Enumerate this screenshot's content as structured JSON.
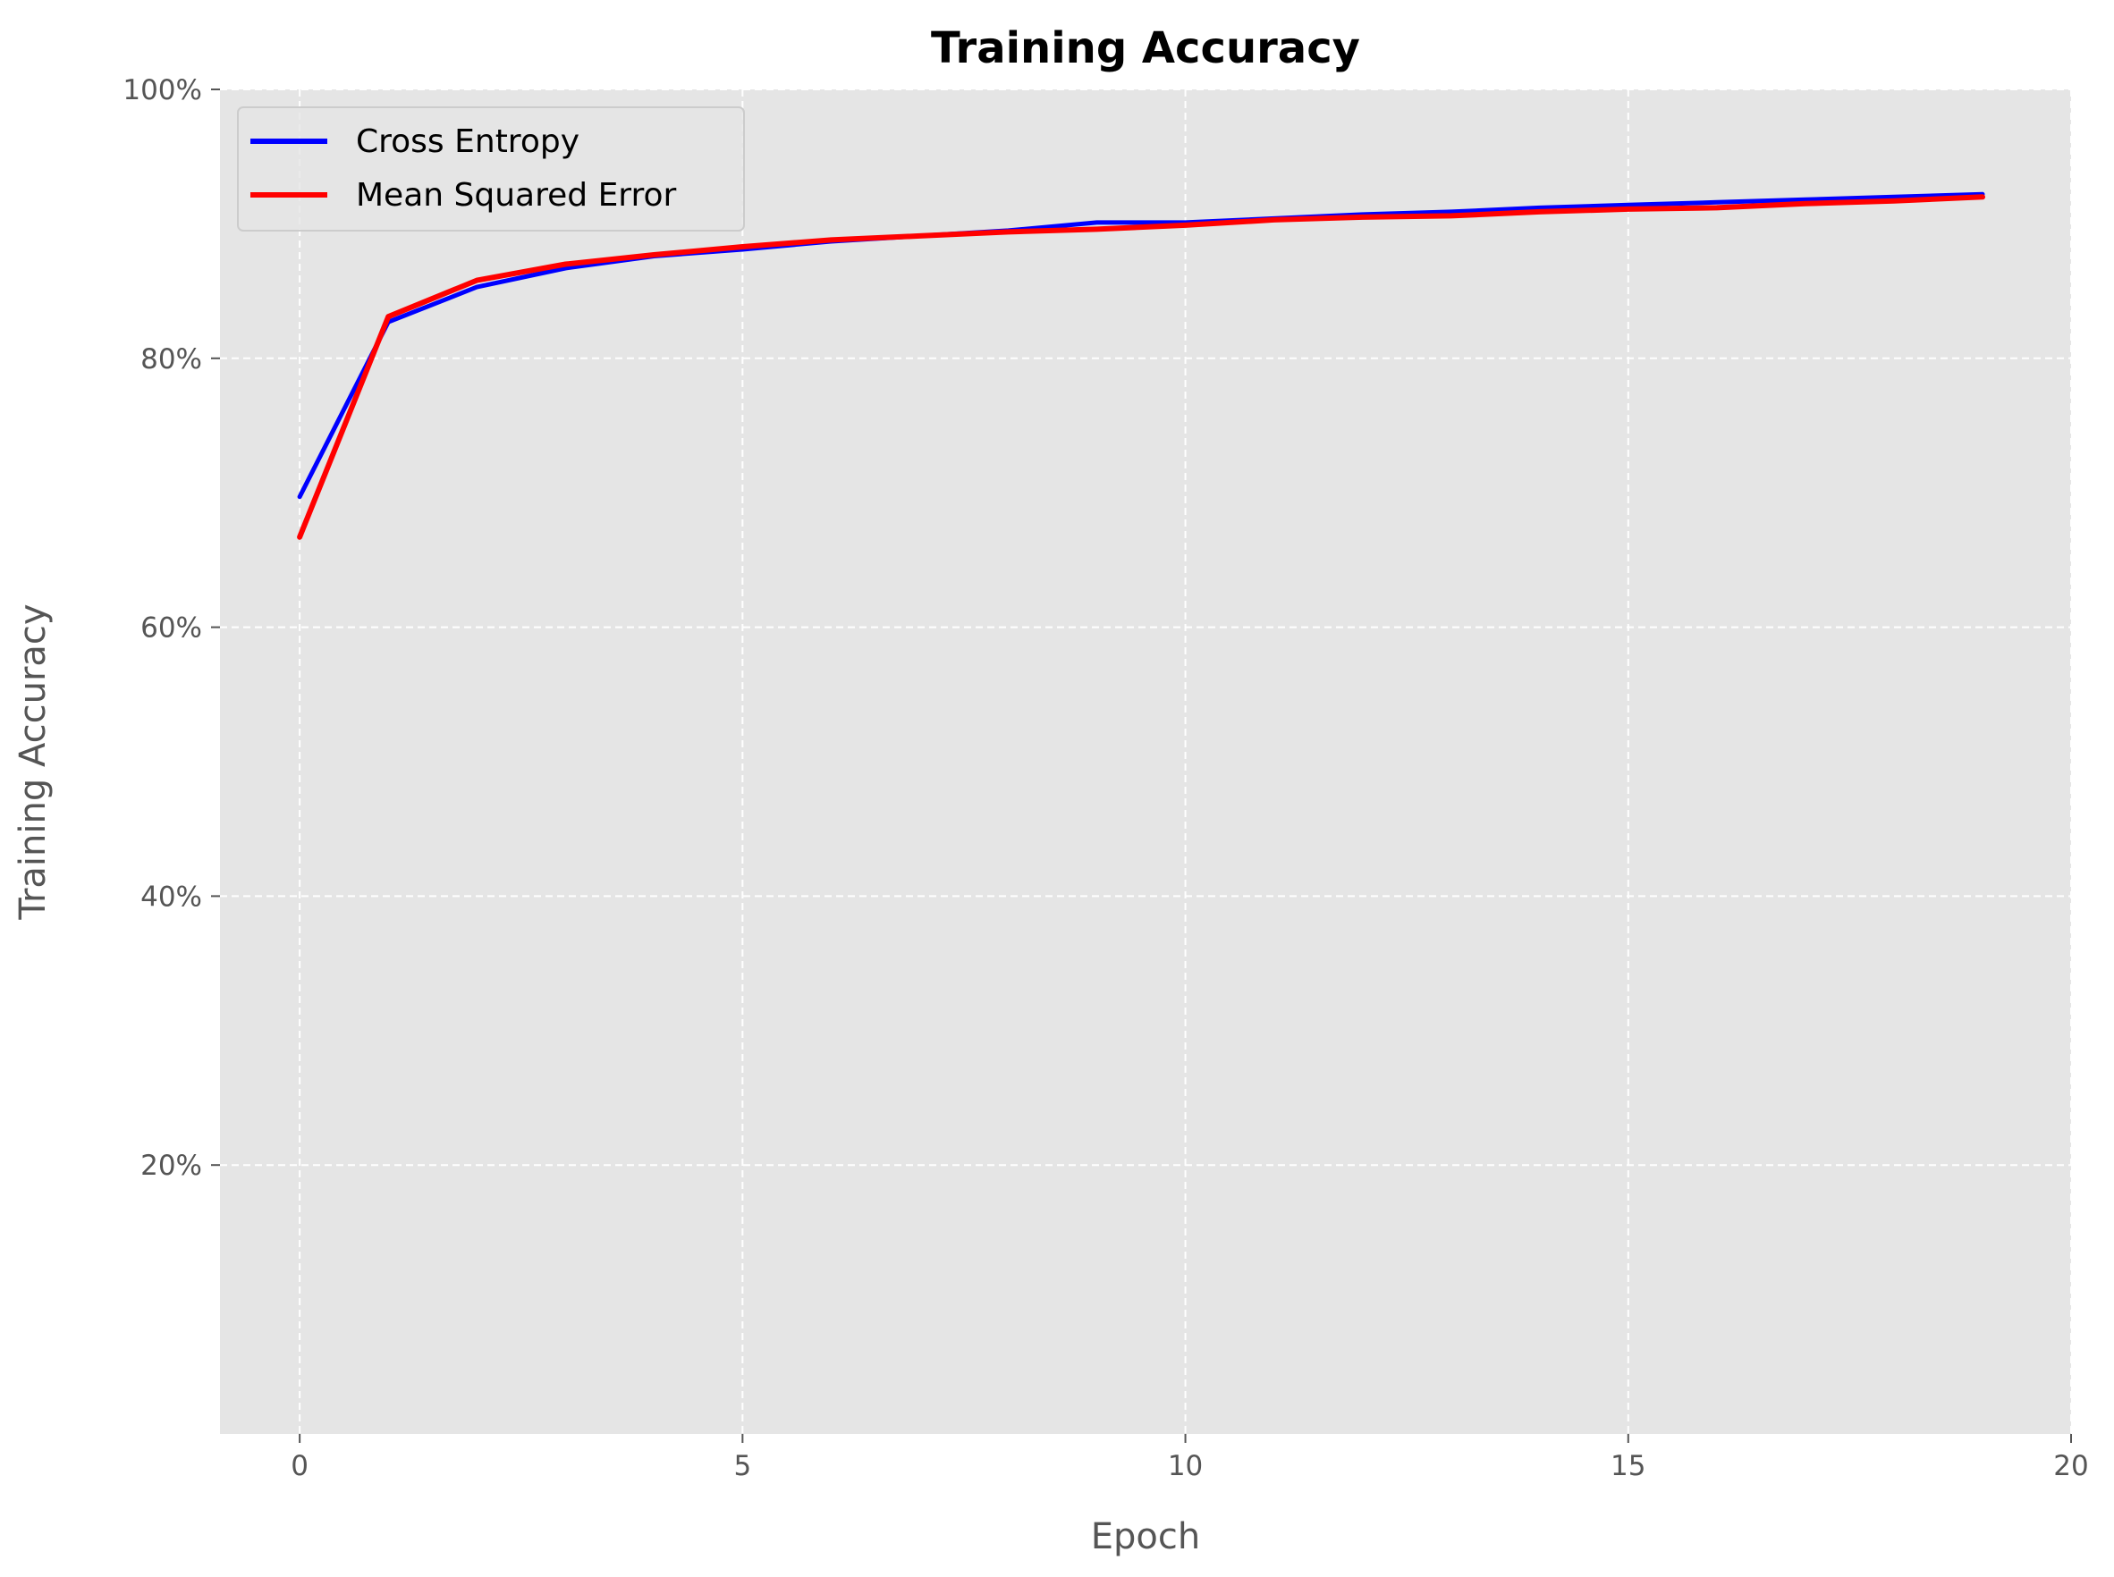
{
  "chart_data": {
    "type": "line",
    "title": "Training Accuracy",
    "xlabel": "Epoch",
    "ylabel": "Training Accuracy",
    "xlim": [
      -0.9,
      20
    ],
    "ylim": [
      0.0,
      1.0
    ],
    "x_ticks": [
      0,
      5,
      10,
      15,
      20
    ],
    "x_tick_labels": [
      "0",
      "5",
      "10",
      "15",
      "20"
    ],
    "y_ticks": [
      0.2,
      0.4,
      0.6,
      0.8,
      1.0
    ],
    "y_tick_labels": [
      "20%",
      "40%",
      "60%",
      "80%",
      "100%"
    ],
    "grid": true,
    "legend_position": "top-left",
    "x": [
      0,
      1,
      2,
      3,
      4,
      5,
      6,
      7,
      8,
      9,
      10,
      11,
      12,
      13,
      14,
      15,
      16,
      17,
      18,
      19
    ],
    "series": [
      {
        "name": "Cross Entropy",
        "color": "#0000ff",
        "values": [
          0.697,
          0.827,
          0.853,
          0.867,
          0.876,
          0.881,
          0.887,
          0.891,
          0.895,
          0.901,
          0.901,
          0.904,
          0.907,
          0.909,
          0.912,
          0.914,
          0.916,
          0.918,
          0.92,
          0.922
        ]
      },
      {
        "name": "Mean Squared Error",
        "color": "#ff0000",
        "values": [
          0.667,
          0.831,
          0.858,
          0.87,
          0.877,
          0.883,
          0.888,
          0.891,
          0.894,
          0.896,
          0.899,
          0.903,
          0.905,
          0.906,
          0.909,
          0.911,
          0.912,
          0.915,
          0.917,
          0.92
        ]
      }
    ]
  },
  "colors": {
    "plot_background": "#e5e5e5",
    "grid": "#ffffff",
    "tick_text": "#555555"
  }
}
